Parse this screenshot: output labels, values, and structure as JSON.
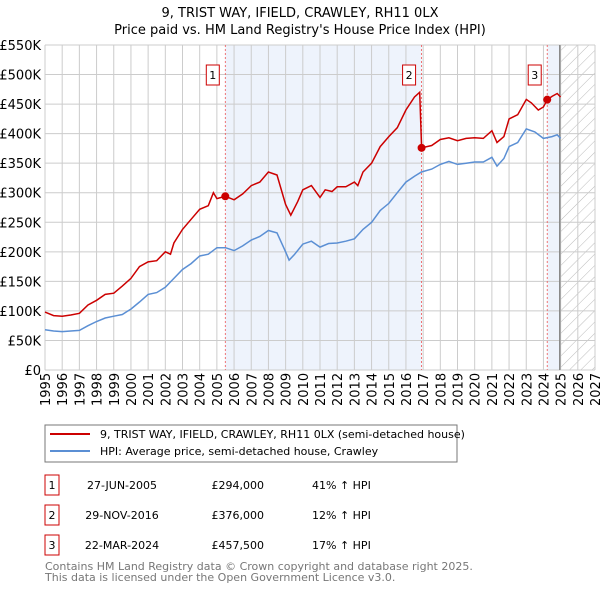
{
  "chart_data": {
    "type": "line",
    "title": "9, TRIST WAY, IFIELD, CRAWLEY, RH11 0LX",
    "subtitle": "Price paid vs. HM Land Registry's House Price Index (HPI)",
    "xlim": [
      1995,
      2027
    ],
    "ylim": [
      0,
      550000
    ],
    "yticks": [
      0,
      50000,
      100000,
      150000,
      200000,
      250000,
      300000,
      350000,
      400000,
      450000,
      500000,
      550000
    ],
    "ytick_labels": [
      "£0",
      "£50K",
      "£100K",
      "£150K",
      "£200K",
      "£250K",
      "£300K",
      "£350K",
      "£400K",
      "£450K",
      "£500K",
      "£550K"
    ],
    "xtick_labels": [
      "1995",
      "1996",
      "1997",
      "1998",
      "1999",
      "2000",
      "2001",
      "2002",
      "2003",
      "2004",
      "2005",
      "2006",
      "2007",
      "2008",
      "2009",
      "2010",
      "2011",
      "2012",
      "2013",
      "2014",
      "2015",
      "2016",
      "2017",
      "2018",
      "2019",
      "2020",
      "2021",
      "2022",
      "2023",
      "2024",
      "2025",
      "2026",
      "2027"
    ],
    "grid": true,
    "shaded_periods": [
      [
        2005.49,
        2016.91
      ],
      [
        2024.22,
        2024.95
      ]
    ],
    "forecast_hatch_from": 2024.95,
    "series": [
      {
        "name": "9, TRIST WAY, IFIELD, CRAWLEY, RH11 0LX (semi-detached house)",
        "color": "#cc0000",
        "x": [
          1995,
          1995.5,
          1996,
          1996.5,
          1997,
          1997.5,
          1998,
          1998.5,
          1999,
          1999.5,
          2000,
          2000.5,
          2001,
          2001.5,
          2002,
          2002.3,
          2002.5,
          2003,
          2003.5,
          2004,
          2004.5,
          2004.8,
          2005,
          2005.49,
          2006,
          2006.5,
          2007,
          2007.5,
          2008,
          2008.5,
          2009,
          2009.3,
          2009.7,
          2010,
          2010.5,
          2011,
          2011.3,
          2011.7,
          2012,
          2012.5,
          2013,
          2013.2,
          2013.5,
          2014,
          2014.5,
          2015,
          2015.5,
          2016,
          2016.5,
          2016.8,
          2016.91,
          2017.5,
          2018,
          2018.5,
          2019,
          2019.5,
          2020,
          2020.5,
          2021,
          2021.3,
          2021.7,
          2022,
          2022.5,
          2023,
          2023.3,
          2023.7,
          2024,
          2024.22,
          2024.5,
          2024.8,
          2025
        ],
        "y": [
          98000,
          92000,
          91000,
          93000,
          96000,
          110000,
          118000,
          128000,
          130000,
          142000,
          155000,
          175000,
          183000,
          185000,
          200000,
          196000,
          215000,
          238000,
          255000,
          272000,
          278000,
          300000,
          290000,
          294000,
          288000,
          298000,
          312000,
          318000,
          335000,
          330000,
          280000,
          262000,
          285000,
          305000,
          312000,
          292000,
          305000,
          302000,
          310000,
          310000,
          318000,
          312000,
          335000,
          350000,
          378000,
          395000,
          410000,
          440000,
          462000,
          470000,
          376000,
          380000,
          390000,
          393000,
          388000,
          392000,
          393000,
          392000,
          405000,
          385000,
          395000,
          425000,
          432000,
          458000,
          452000,
          440000,
          445000,
          457500,
          463000,
          468000,
          462000
        ]
      },
      {
        "name": "HPI: Average price, semi-detached house, Crawley",
        "color": "#5b8fd4",
        "x": [
          1995,
          1995.5,
          1996,
          1996.5,
          1997,
          1997.5,
          1998,
          1998.5,
          1999,
          1999.5,
          2000,
          2000.5,
          2001,
          2001.5,
          2002,
          2002.5,
          2003,
          2003.5,
          2004,
          2004.5,
          2005,
          2005.5,
          2006,
          2006.5,
          2007,
          2007.5,
          2008,
          2008.5,
          2009,
          2009.2,
          2009.5,
          2010,
          2010.5,
          2011,
          2011.5,
          2012,
          2012.5,
          2013,
          2013.5,
          2014,
          2014.5,
          2015,
          2015.5,
          2016,
          2016.5,
          2016.9,
          2017.5,
          2018,
          2018.5,
          2019,
          2019.5,
          2020,
          2020.5,
          2021,
          2021.3,
          2021.7,
          2022,
          2022.5,
          2023,
          2023.5,
          2024,
          2024.5,
          2024.8,
          2025
        ],
        "y": [
          68000,
          66000,
          65000,
          66000,
          67000,
          75000,
          82000,
          88000,
          91000,
          94000,
          103000,
          115000,
          128000,
          131000,
          140000,
          155000,
          170000,
          180000,
          193000,
          196000,
          207000,
          207000,
          202000,
          210000,
          220000,
          226000,
          236000,
          232000,
          200000,
          186000,
          195000,
          213000,
          218000,
          208000,
          214000,
          215000,
          218000,
          222000,
          238000,
          250000,
          270000,
          282000,
          300000,
          318000,
          328000,
          335000,
          340000,
          348000,
          353000,
          348000,
          350000,
          352000,
          352000,
          360000,
          345000,
          358000,
          378000,
          385000,
          408000,
          403000,
          392000,
          395000,
          398000,
          392000
        ]
      }
    ],
    "transactions": [
      {
        "num": "1",
        "date": "27-JUN-2005",
        "x": 2005.49,
        "price": "£294,000",
        "value": 294000,
        "hpi": "41% ↑ HPI"
      },
      {
        "num": "2",
        "date": "29-NOV-2016",
        "x": 2016.91,
        "price": "£376,000",
        "value": 376000,
        "hpi": "12% ↑ HPI"
      },
      {
        "num": "3",
        "date": "22-MAR-2024",
        "x": 2024.22,
        "price": "£457,500",
        "value": 457500,
        "hpi": "17% ↑ HPI"
      }
    ],
    "footer": [
      "Contains HM Land Registry data © Crown copyright and database right 2025.",
      "This data is licensed under the Open Government Licence v3.0."
    ]
  }
}
